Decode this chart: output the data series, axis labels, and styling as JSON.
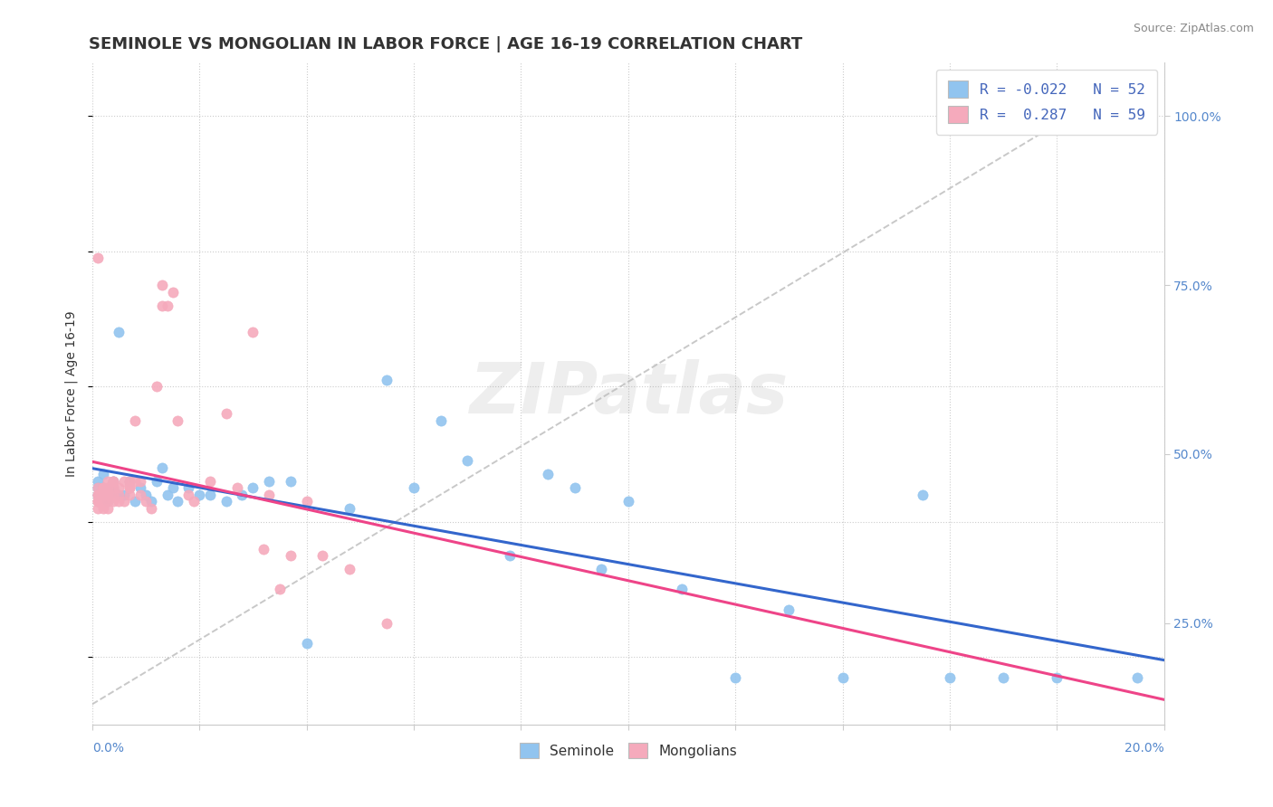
{
  "title": "SEMINOLE VS MONGOLIAN IN LABOR FORCE | AGE 16-19 CORRELATION CHART",
  "source": "Source: ZipAtlas.com",
  "ylabel": "In Labor Force | Age 16-19",
  "right_ytick_vals": [
    0.25,
    0.5,
    0.75,
    1.0
  ],
  "right_ytick_labels": [
    "25.0%",
    "50.0%",
    "75.0%",
    "100.0%"
  ],
  "xlim": [
    0.0,
    0.2
  ],
  "ylim": [
    0.1,
    1.08
  ],
  "seminole_color": "#91C4EF",
  "mongolian_color": "#F5AABC",
  "seminole_line_color": "#3366CC",
  "mongolian_line_color": "#EE4488",
  "ref_line_color": "#BBBBBB",
  "watermark": "ZIPatlas",
  "seminole_x": [
    0.001,
    0.001,
    0.001,
    0.002,
    0.002,
    0.002,
    0.003,
    0.003,
    0.003,
    0.004,
    0.004,
    0.005,
    0.005,
    0.006,
    0.007,
    0.008,
    0.009,
    0.01,
    0.011,
    0.012,
    0.013,
    0.014,
    0.015,
    0.016,
    0.018,
    0.02,
    0.022,
    0.025,
    0.028,
    0.03,
    0.033,
    0.037,
    0.04,
    0.048,
    0.055,
    0.06,
    0.065,
    0.07,
    0.078,
    0.085,
    0.09,
    0.095,
    0.1,
    0.11,
    0.12,
    0.13,
    0.14,
    0.155,
    0.16,
    0.17,
    0.18,
    0.195
  ],
  "seminole_y": [
    0.46,
    0.45,
    0.44,
    0.45,
    0.47,
    0.44,
    0.43,
    0.45,
    0.44,
    0.46,
    0.45,
    0.44,
    0.68,
    0.44,
    0.46,
    0.43,
    0.45,
    0.44,
    0.43,
    0.46,
    0.48,
    0.44,
    0.45,
    0.43,
    0.45,
    0.44,
    0.44,
    0.43,
    0.44,
    0.45,
    0.46,
    0.46,
    0.22,
    0.42,
    0.61,
    0.45,
    0.55,
    0.49,
    0.35,
    0.47,
    0.45,
    0.33,
    0.43,
    0.3,
    0.17,
    0.27,
    0.17,
    0.44,
    0.17,
    0.17,
    0.17,
    0.17
  ],
  "mongolian_x": [
    0.001,
    0.001,
    0.001,
    0.001,
    0.001,
    0.001,
    0.001,
    0.002,
    0.002,
    0.002,
    0.002,
    0.002,
    0.003,
    0.003,
    0.003,
    0.003,
    0.003,
    0.003,
    0.003,
    0.004,
    0.004,
    0.004,
    0.004,
    0.004,
    0.005,
    0.005,
    0.005,
    0.006,
    0.006,
    0.007,
    0.007,
    0.007,
    0.007,
    0.008,
    0.008,
    0.009,
    0.009,
    0.01,
    0.011,
    0.012,
    0.013,
    0.013,
    0.014,
    0.015,
    0.016,
    0.018,
    0.019,
    0.022,
    0.025,
    0.027,
    0.03,
    0.032,
    0.033,
    0.035,
    0.037,
    0.04,
    0.043,
    0.048,
    0.055
  ],
  "mongolian_y": [
    0.79,
    0.45,
    0.44,
    0.43,
    0.42,
    0.44,
    0.43,
    0.45,
    0.44,
    0.43,
    0.45,
    0.42,
    0.44,
    0.45,
    0.43,
    0.44,
    0.42,
    0.46,
    0.44,
    0.46,
    0.45,
    0.43,
    0.44,
    0.46,
    0.45,
    0.44,
    0.43,
    0.46,
    0.43,
    0.46,
    0.45,
    0.44,
    0.45,
    0.55,
    0.46,
    0.44,
    0.46,
    0.43,
    0.42,
    0.6,
    0.75,
    0.72,
    0.72,
    0.74,
    0.55,
    0.44,
    0.43,
    0.46,
    0.56,
    0.45,
    0.68,
    0.36,
    0.44,
    0.3,
    0.35,
    0.43,
    0.35,
    0.33,
    0.25
  ],
  "background_color": "#FFFFFF",
  "title_fontsize": 13,
  "axis_label_fontsize": 10,
  "tick_fontsize": 10,
  "legend_r1": "R = -0.022   N = 52",
  "legend_r2": "R =  0.287   N = 59"
}
